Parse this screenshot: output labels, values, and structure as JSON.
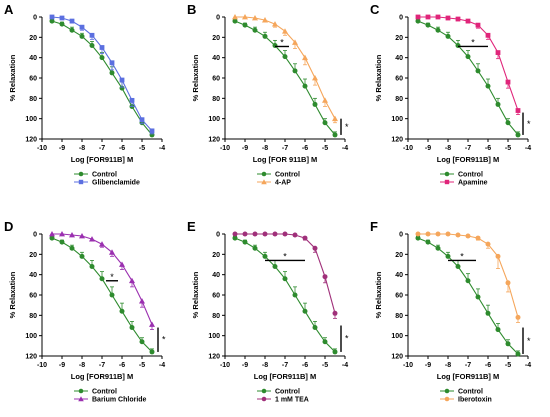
{
  "chart_data": [
    {
      "type": "line",
      "panel_label": "A",
      "xlabel": "Log [FOR911B] M",
      "ylabel": "% Relaxation",
      "xlim": [
        -10,
        -4
      ],
      "ylim": [
        0,
        120
      ],
      "y_inverted": true,
      "x_ticks": [
        "-10",
        "-9",
        "-8",
        "-7",
        "-6",
        "-5",
        "-4"
      ],
      "y_ticks": [
        "0",
        "20",
        "40",
        "60",
        "80",
        "100",
        "120"
      ],
      "series": [
        {
          "name": "Control",
          "color": "#2e8b2e",
          "marker": "circle",
          "x": [
            -9.5,
            -9.0,
            -8.5,
            -8.0,
            -7.5,
            -7.0,
            -6.5,
            -6.0,
            -5.5,
            -5.0,
            -4.5
          ],
          "y": [
            4,
            7,
            13,
            19,
            28,
            40,
            55,
            70,
            88,
            104,
            116
          ],
          "err": [
            2,
            2,
            3,
            3,
            4,
            5,
            6,
            6,
            5,
            4,
            3
          ]
        },
        {
          "name": "Glibenclamide",
          "color": "#5b6fe0",
          "marker": "square",
          "x": [
            -9.5,
            -9.0,
            -8.5,
            -8.0,
            -7.5,
            -7.0,
            -6.5,
            -6.0,
            -5.5,
            -5.0,
            -4.5
          ],
          "y": [
            0,
            1,
            4,
            10,
            18,
            30,
            45,
            62,
            82,
            101,
            112
          ],
          "err": [
            1,
            1,
            2,
            3,
            4,
            6,
            7,
            7,
            6,
            4,
            3
          ]
        }
      ],
      "significance": {
        "x_from": null,
        "x_to": null,
        "y_from": null,
        "y_to": null,
        "text": ""
      },
      "vertical_bar": null
    },
    {
      "type": "line",
      "panel_label": "B",
      "xlabel": "Log [FOR 911B] M",
      "ylabel": "% Relaxation",
      "xlim": [
        -10,
        -4
      ],
      "ylim": [
        0,
        120
      ],
      "y_inverted": true,
      "x_ticks": [
        "-10",
        "-9",
        "-8",
        "-7",
        "-6",
        "-5",
        "-4"
      ],
      "y_ticks": [
        "0",
        "20",
        "40",
        "60",
        "80",
        "100",
        "120"
      ],
      "series": [
        {
          "name": "Control",
          "color": "#2e8b2e",
          "marker": "circle",
          "x": [
            -9.5,
            -9.0,
            -8.5,
            -8.0,
            -7.5,
            -7.0,
            -6.5,
            -6.0,
            -5.5,
            -5.0,
            -4.5
          ],
          "y": [
            4,
            8,
            13,
            19,
            28,
            39,
            53,
            68,
            86,
            104,
            116
          ],
          "err": [
            2,
            2,
            3,
            4,
            5,
            6,
            7,
            7,
            6,
            4,
            3
          ]
        },
        {
          "name": "4-AP",
          "color": "#f5a65b",
          "marker": "triangle",
          "x": [
            -9.5,
            -9.0,
            -8.5,
            -8.0,
            -7.5,
            -7.0,
            -6.5,
            -6.0,
            -5.5,
            -5.0,
            -4.5
          ],
          "y": [
            0,
            0,
            1,
            3,
            7,
            14,
            25,
            40,
            60,
            82,
            100
          ],
          "err": [
            1,
            1,
            1,
            2,
            3,
            4,
            6,
            7,
            7,
            6,
            4
          ]
        }
      ],
      "significance": {
        "x_from": -7.5,
        "x_to": -6.8,
        "y": 29,
        "text": "*"
      },
      "vertical_bar": {
        "x": -4.2,
        "y_from": 100,
        "y_to": 116,
        "text": "*"
      }
    },
    {
      "type": "line",
      "panel_label": "C",
      "xlabel": "Log [FOR911B] M",
      "ylabel": "% Relaxation",
      "xlim": [
        -10,
        -4
      ],
      "ylim": [
        0,
        120
      ],
      "y_inverted": true,
      "x_ticks": [
        "-10",
        "-9",
        "-8",
        "-7",
        "-6",
        "-5",
        "-4"
      ],
      "y_ticks": [
        "0",
        "20",
        "40",
        "60",
        "80",
        "100",
        "120"
      ],
      "series": [
        {
          "name": "Control",
          "color": "#2e8b2e",
          "marker": "circle",
          "x": [
            -9.5,
            -9.0,
            -8.5,
            -8.0,
            -7.5,
            -7.0,
            -6.5,
            -6.0,
            -5.5,
            -5.0,
            -4.5
          ],
          "y": [
            4,
            8,
            13,
            19,
            28,
            39,
            53,
            68,
            86,
            104,
            116
          ],
          "err": [
            2,
            2,
            3,
            4,
            5,
            6,
            7,
            7,
            6,
            4,
            3
          ]
        },
        {
          "name": "Apamine",
          "color": "#e0257a",
          "marker": "square",
          "x": [
            -9.5,
            -9.0,
            -8.5,
            -8.0,
            -7.5,
            -7.0,
            -6.5,
            -6.0,
            -5.5,
            -5.0,
            -4.5
          ],
          "y": [
            0,
            0,
            0,
            1,
            2,
            4,
            8,
            18,
            35,
            64,
            92
          ],
          "err": [
            1,
            1,
            1,
            1,
            1,
            2,
            3,
            4,
            6,
            6,
            4
          ]
        }
      ],
      "significance": {
        "x_from": -7.5,
        "x_to": -6.0,
        "y": 29,
        "text": "*"
      },
      "vertical_bar": {
        "x": -4.25,
        "y_from": 94,
        "y_to": 116,
        "text": "*"
      }
    },
    {
      "type": "line",
      "panel_label": "D",
      "xlabel": "Log [FOR911B] M",
      "ylabel": "% Relaxation",
      "xlim": [
        -10,
        -4
      ],
      "ylim": [
        0,
        120
      ],
      "y_inverted": true,
      "x_ticks": [
        "-10",
        "-9",
        "-8",
        "-7",
        "-6",
        "-5",
        "-4"
      ],
      "y_ticks": [
        "0",
        "20",
        "40",
        "60",
        "80",
        "100",
        "120"
      ],
      "series": [
        {
          "name": "Control",
          "color": "#2e8b2e",
          "marker": "circle",
          "x": [
            -9.5,
            -9.0,
            -8.5,
            -8.0,
            -7.5,
            -7.0,
            -6.5,
            -6.0,
            -5.5,
            -5.0,
            -4.5
          ],
          "y": [
            4,
            8,
            14,
            22,
            32,
            44,
            60,
            76,
            92,
            106,
            116
          ],
          "err": [
            2,
            2,
            3,
            4,
            6,
            7,
            8,
            8,
            6,
            4,
            3
          ]
        },
        {
          "name": "Barium Chloride",
          "color": "#9b30b0",
          "marker": "triangle",
          "x": [
            -9.5,
            -9.0,
            -8.5,
            -8.0,
            -7.5,
            -7.0,
            -6.5,
            -6.0,
            -5.5,
            -5.0,
            -4.5
          ],
          "y": [
            0,
            0,
            1,
            2,
            5,
            10,
            18,
            30,
            46,
            66,
            89
          ],
          "err": [
            1,
            1,
            1,
            1,
            2,
            3,
            4,
            5,
            6,
            6,
            5
          ]
        }
      ],
      "significance": {
        "x_from": -6.8,
        "x_to": -6.2,
        "y": 46,
        "text": "*"
      },
      "vertical_bar": {
        "x": -4.2,
        "y_from": 92,
        "y_to": 116,
        "text": "*"
      }
    },
    {
      "type": "line",
      "panel_label": "E",
      "xlabel": "Log [FOR911B] M",
      "ylabel": "% Relaxation",
      "xlim": [
        -10,
        -4
      ],
      "ylim": [
        0,
        120
      ],
      "y_inverted": true,
      "x_ticks": [
        "-10",
        "-9",
        "-8",
        "-7",
        "-6",
        "-5",
        "-4"
      ],
      "y_ticks": [
        "0",
        "20",
        "40",
        "60",
        "80",
        "100",
        "120"
      ],
      "series": [
        {
          "name": "Control",
          "color": "#2e8b2e",
          "marker": "circle",
          "x": [
            -9.5,
            -9.0,
            -8.5,
            -8.0,
            -7.5,
            -7.0,
            -6.5,
            -6.0,
            -5.5,
            -5.0,
            -4.5
          ],
          "y": [
            4,
            8,
            14,
            22,
            32,
            44,
            60,
            76,
            92,
            106,
            116
          ],
          "err": [
            2,
            2,
            3,
            4,
            6,
            7,
            8,
            8,
            6,
            4,
            3
          ]
        },
        {
          "name": "1 mM TEA",
          "color": "#a0307a",
          "marker": "circle",
          "x": [
            -9.5,
            -9.0,
            -8.5,
            -8.0,
            -7.5,
            -7.0,
            -6.5,
            -6.0,
            -5.5,
            -5.0,
            -4.5
          ],
          "y": [
            0,
            0,
            0,
            0,
            0,
            0,
            1,
            4,
            14,
            42,
            78
          ],
          "err": [
            1,
            1,
            1,
            1,
            1,
            1,
            1,
            2,
            4,
            6,
            5
          ]
        }
      ],
      "significance": {
        "x_from": -8.0,
        "x_to": -6.0,
        "y": 26,
        "text": "*"
      },
      "vertical_bar": {
        "x": -4.2,
        "y_from": 90,
        "y_to": 116,
        "text": "*"
      }
    },
    {
      "type": "line",
      "panel_label": "F",
      "xlabel": "Log [FOR911B] M",
      "ylabel": "% Relaxation",
      "xlim": [
        -10,
        -4
      ],
      "ylim": [
        0,
        120
      ],
      "y_inverted": true,
      "x_ticks": [
        "-10",
        "-9",
        "-8",
        "-7",
        "-6",
        "-5",
        "-4"
      ],
      "y_ticks": [
        "0",
        "20",
        "40",
        "60",
        "80",
        "100",
        "120"
      ],
      "series": [
        {
          "name": "Control",
          "color": "#2e8b2e",
          "marker": "circle",
          "x": [
            -9.5,
            -9.0,
            -8.5,
            -8.0,
            -7.5,
            -7.0,
            -6.5,
            -6.0,
            -5.5,
            -5.0,
            -4.5
          ],
          "y": [
            4,
            8,
            14,
            22,
            32,
            46,
            62,
            78,
            94,
            108,
            118
          ],
          "err": [
            2,
            2,
            3,
            4,
            6,
            7,
            8,
            8,
            6,
            4,
            3
          ]
        },
        {
          "name": "Iberotoxin",
          "color": "#f5a65b",
          "marker": "circle",
          "x": [
            -9.5,
            -9.0,
            -8.5,
            -8.0,
            -7.5,
            -7.0,
            -6.5,
            -6.0,
            -5.5,
            -5.0,
            -4.5
          ],
          "y": [
            0,
            0,
            0,
            0,
            1,
            2,
            4,
            10,
            22,
            48,
            82
          ],
          "err": [
            1,
            1,
            1,
            1,
            1,
            1,
            2,
            4,
            12,
            9,
            5
          ]
        }
      ],
      "significance": {
        "x_from": -8.0,
        "x_to": -6.6,
        "y": 26,
        "text": "*"
      },
      "vertical_bar": {
        "x": -4.25,
        "y_from": 92,
        "y_to": 118,
        "text": "*"
      }
    }
  ]
}
